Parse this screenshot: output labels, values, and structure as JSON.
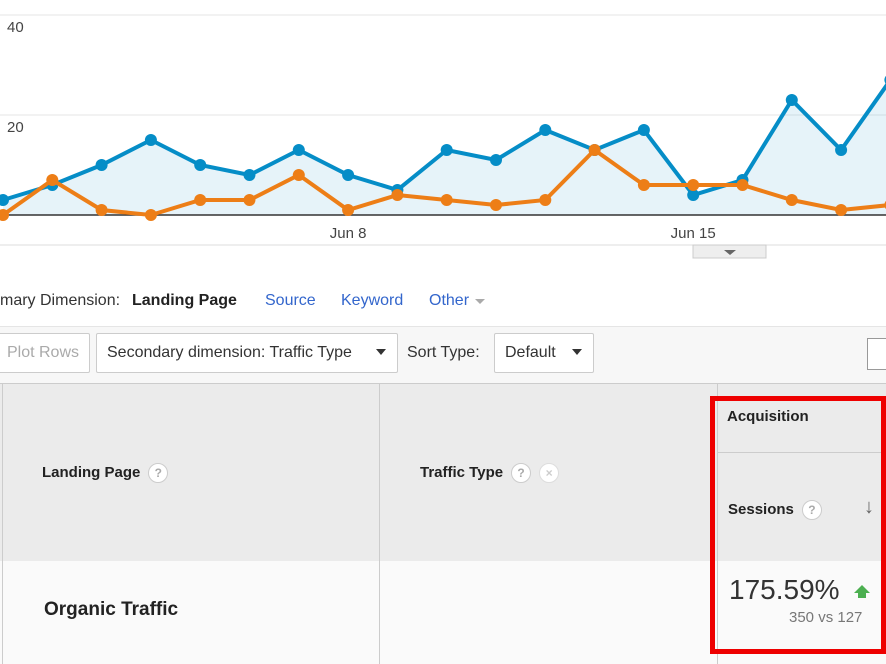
{
  "chart_data": {
    "type": "line",
    "ylim": [
      0,
      40
    ],
    "yticks": [
      20,
      40
    ],
    "grid": true,
    "categories": [
      null,
      null,
      null,
      null,
      null,
      null,
      null,
      "Jun 8",
      null,
      null,
      null,
      null,
      null,
      null,
      "Jun 15",
      null,
      null,
      null,
      null
    ],
    "series": [
      {
        "color": "#058dc7",
        "area": true,
        "values": [
          3,
          6,
          10,
          15,
          10,
          8,
          13,
          8,
          5,
          13,
          11,
          17,
          13,
          17,
          4,
          7,
          23,
          13,
          27
        ]
      },
      {
        "color": "#ed7e17",
        "area": false,
        "values": [
          0,
          7,
          1,
          0,
          3,
          3,
          8,
          1,
          4,
          3,
          2,
          3,
          13,
          6,
          6,
          6,
          3,
          1,
          2
        ]
      }
    ]
  },
  "tabs": {
    "label": "mary Dimension:",
    "active": "Landing Page",
    "links": [
      "Source",
      "Keyword",
      "Other"
    ]
  },
  "toolbar": {
    "plot_rows": "Plot Rows",
    "secondary": "Secondary dimension: Traffic Type",
    "sort_label": "Sort Type:",
    "sort_value": "Default"
  },
  "table": {
    "headers": {
      "landing_page": "Landing Page",
      "traffic_type": "Traffic Type",
      "group": "Acquisition",
      "sessions": "Sessions"
    },
    "row": {
      "segment": "Organic Traffic",
      "change": "175.59%",
      "compare": "350 vs 127"
    }
  }
}
